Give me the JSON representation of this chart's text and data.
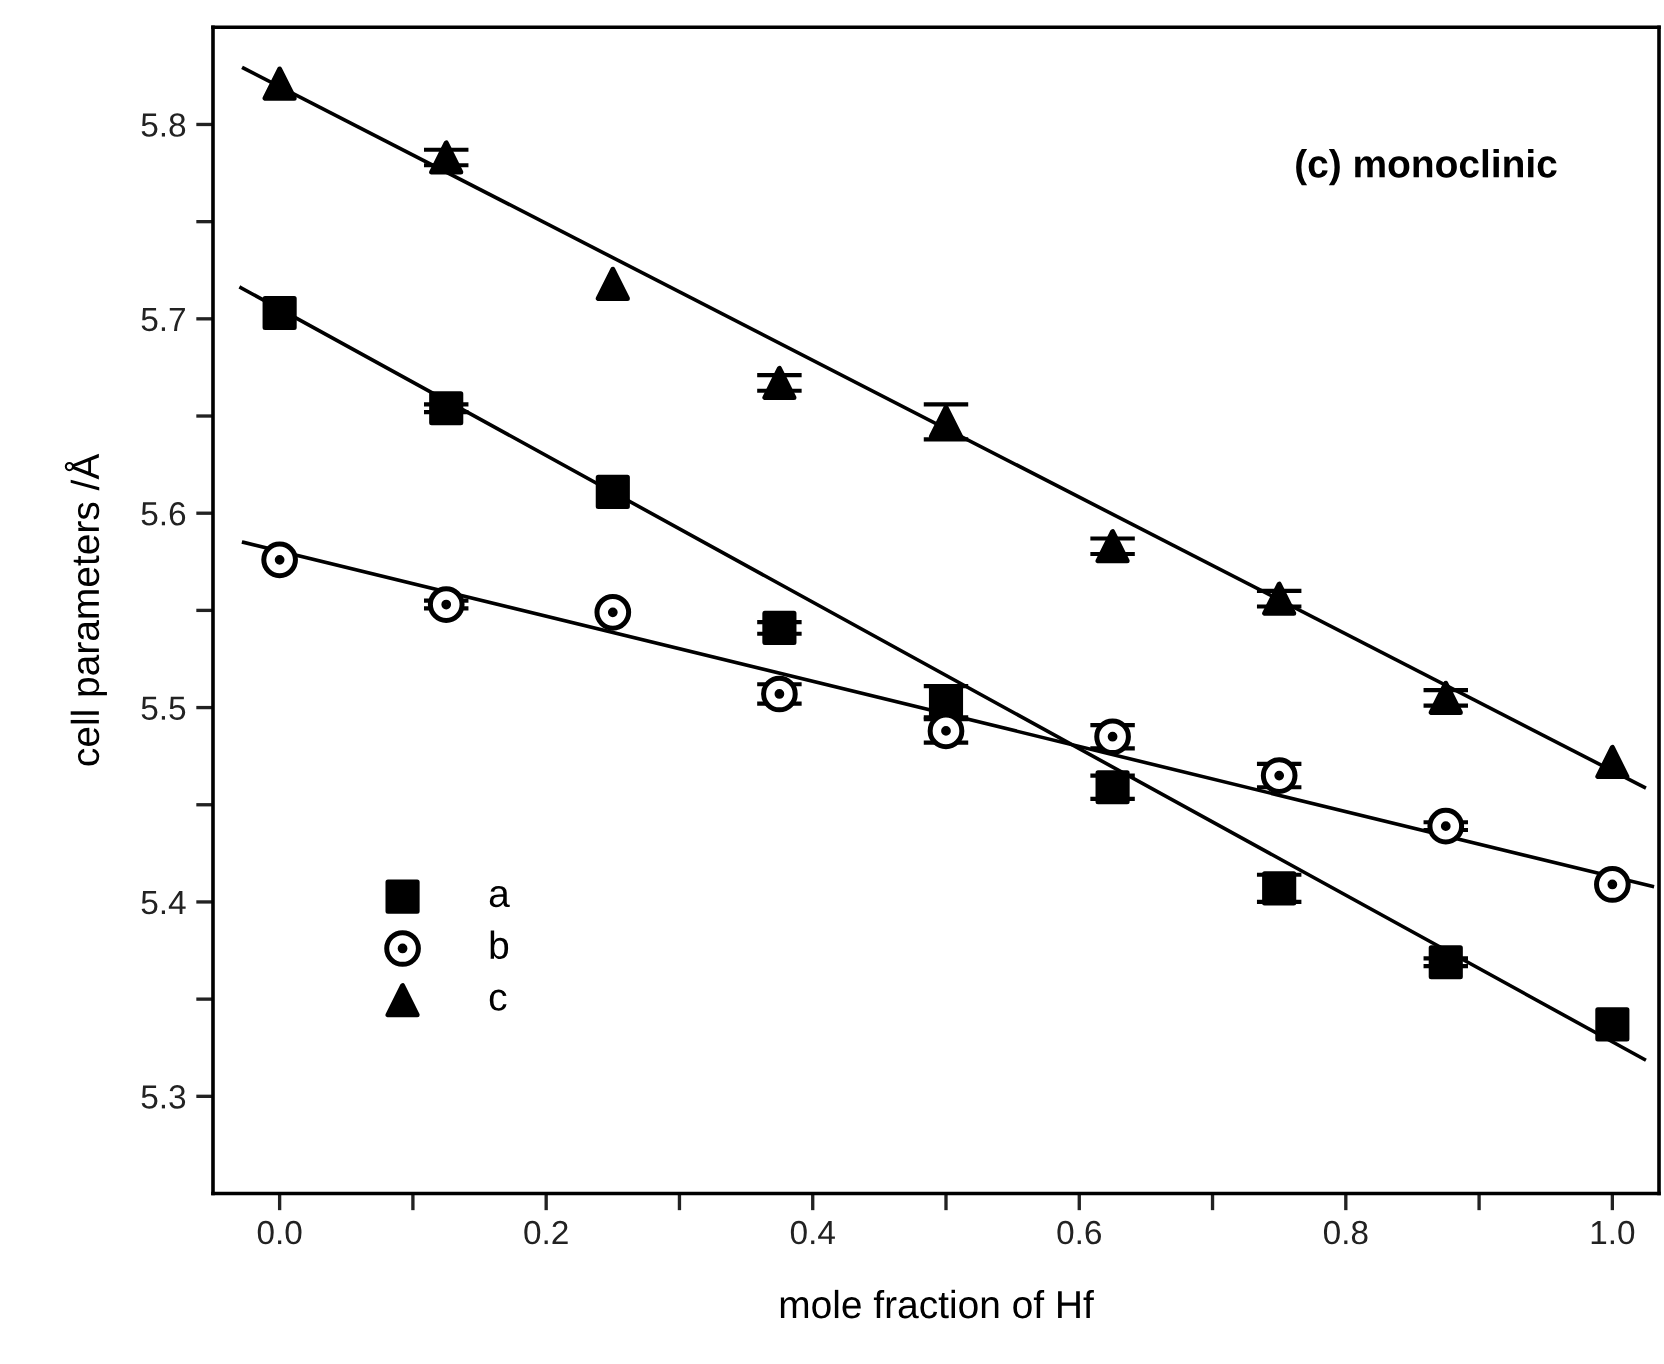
{
  "chart_data": {
    "type": "scatter",
    "xlabel": "mole fraction of Hf",
    "ylabel": "cell parameters /Å",
    "annotations": [
      "(c) monoclinic"
    ],
    "x": [
      0,
      0.125,
      0.25,
      0.375,
      0.5,
      0.625,
      0.75,
      0.875,
      1.0
    ],
    "series": [
      {
        "name": "a",
        "color": "#000000",
        "marker": "square",
        "values": [
          5.703,
          5.654,
          5.611,
          5.541,
          5.503,
          5.459,
          5.407,
          5.369,
          5.337
        ],
        "errors": [
          null,
          0.002,
          null,
          0.003,
          0.008,
          0.006,
          0.007,
          0.002,
          null
        ]
      },
      {
        "name": "b",
        "color": "#000000",
        "marker": "circle",
        "values": [
          5.576,
          5.553,
          5.549,
          5.507,
          5.488,
          5.485,
          5.465,
          5.439,
          5.409
        ],
        "errors": [
          null,
          0.002,
          null,
          0.005,
          0.006,
          0.006,
          0.006,
          0.002,
          null
        ]
      },
      {
        "name": "c",
        "color": "#000000",
        "marker": "triangle",
        "values": [
          5.821,
          5.783,
          5.718,
          5.667,
          5.647,
          5.583,
          5.556,
          5.505,
          5.472
        ],
        "errors": [
          null,
          0.004,
          null,
          0.004,
          0.009,
          0.004,
          0.004,
          0.004,
          null
        ]
      },
      {
        "type": "line",
        "color": "#000000",
        "marker": "none",
        "line_style": "solid",
        "x": [
          -0.029,
          1.024
        ],
        "values": [
          5.716,
          5.319
        ]
      },
      {
        "type": "line",
        "color": "#000000",
        "marker": "none",
        "line_style": "solid",
        "x": [
          -0.027,
          1.03
        ],
        "values": [
          5.585,
          5.408
        ]
      },
      {
        "type": "line",
        "color": "#000000",
        "marker": "none",
        "line_style": "solid",
        "x": [
          -0.027,
          1.024
        ],
        "values": [
          5.829,
          5.459
        ]
      }
    ],
    "xlim": [
      -0.05,
      1.035
    ],
    "ylim": [
      5.25,
      5.85
    ],
    "xticks": [
      {
        "value": 0,
        "label": "0.0"
      },
      {
        "value": 0.1,
        "label": null
      },
      {
        "value": 0.2,
        "label": "0.2"
      },
      {
        "value": 0.3,
        "label": null
      },
      {
        "value": 0.4,
        "label": "0.4"
      },
      {
        "value": 0.5,
        "label": null
      },
      {
        "value": 0.6,
        "label": "0.6"
      },
      {
        "value": 0.7,
        "label": null
      },
      {
        "value": 0.8,
        "label": "0.8"
      },
      {
        "value": 0.9,
        "label": null
      },
      {
        "value": 1,
        "label": "1.0"
      }
    ],
    "yticks": [
      5.3,
      {
        "value": 5.35,
        "label": null
      },
      5.4,
      {
        "value": 5.45,
        "label": null
      },
      5.5,
      {
        "value": 5.55,
        "label": null
      },
      5.6,
      {
        "value": 5.65,
        "label": null
      },
      5.7,
      {
        "value": 5.75,
        "label": null
      },
      5.8
    ],
    "grid": false,
    "legend": "bottom left"
  }
}
